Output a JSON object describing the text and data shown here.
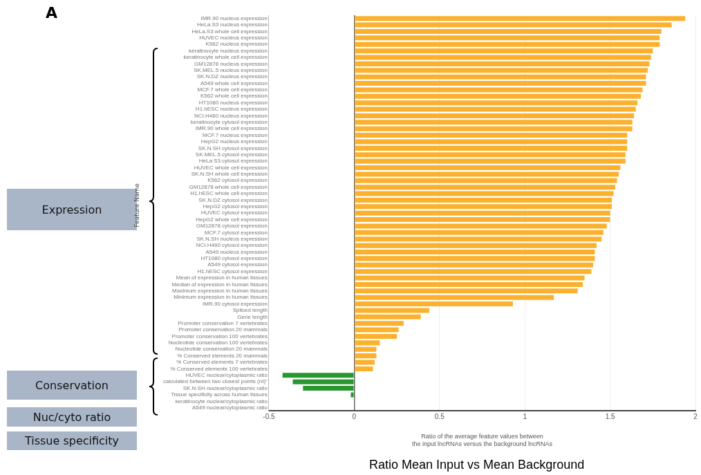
{
  "chart_data": {
    "type": "bar",
    "orientation": "horizontal",
    "xlabel": "Ratio of the average feature values between\nthe input lncRNAs versus the background lncRNAs",
    "ylabel": "Feature Name",
    "categories": [
      "IMR.90 nucleus expression",
      "HeLa.S3 nucleus expression",
      "HeLa.S3 whole cell expression",
      "HUVEC nucleus expression",
      "K562 nucleus expression",
      "keratinocyte nucleus expression",
      "keratinocyte whole cell expression",
      "GM12878 nucleus expression",
      "SK.MEL.5 nucleus expression",
      "SK.N.DZ nucleus expression",
      "A549 whole cell expression",
      "MCF.7 whole cell expression",
      "K562 whole cell expression",
      "HT1080 nucleus expression",
      "H1.hESC nucleus expression",
      "NCI.H460 nucleus expression",
      "keratinocyte cytosol expression",
      "IMR.90 whole cell expression",
      "MCF.7 nucleus expression",
      "HepG2 nucleus expression",
      "SK.N.SH cytosol expression",
      "SK.MEL.5 cytosol expression",
      "HeLa.S3 cytosol expression",
      "HUVEC whole cell expression",
      "SK.N.SH whole cell expression",
      "K562 cytosol expression",
      "GM12878 whole cell expression",
      "H1.hESC whole cell expression",
      "SK.N.DZ cytosol expression",
      "HepG2 cytosol expression",
      "HUVEC cytosol expression",
      "HepG2 whole cell expression",
      "GM12878 cytosol expression",
      "MCF.7 cytosol expression",
      "SK.N.SH nucleus expression",
      "NCI.H460 cytosol expression",
      "A549 nucleus expression",
      "HT1080 cytosol expression",
      "A549 cytosol expression",
      "H1.hESC cytosol expression",
      "Mean of expression in human tissues",
      "Median of expression in human tissues",
      "Maximum expression in human tissues",
      "Minimum expression in human tissues",
      "IMR.90 cytosol expression",
      "Spliced length",
      "Gene length",
      "Promoter conservation 7 vertebrates",
      "Promoter conservation 20 mammals",
      "Promoter conservation 100 vertebrates",
      "Nucleotide conservation 100 vertebrates",
      "Nucleotide conservation 20 mammals",
      "% Conserved elements 20 mammals",
      "% Conserved elements 7 vertebrates",
      "% Conserved elements 100 vertebrates",
      "HUVEC nuclear/cytoplasmic ratio",
      "calculated between two closest points (nt)\"",
      "SK.N.SH nuclear/cytoplasmic ratio",
      "Tissue specificity across human tissues",
      "keratinocyte nuclear/cytoplasmic ratio",
      "A549 nuclear/cytoplasmic ratio"
    ],
    "values": [
      1.94,
      1.86,
      1.8,
      1.79,
      1.79,
      1.75,
      1.74,
      1.73,
      1.72,
      1.71,
      1.71,
      1.69,
      1.68,
      1.66,
      1.65,
      1.64,
      1.63,
      1.63,
      1.6,
      1.6,
      1.6,
      1.59,
      1.59,
      1.56,
      1.55,
      1.54,
      1.53,
      1.52,
      1.51,
      1.51,
      1.5,
      1.5,
      1.48,
      1.46,
      1.45,
      1.42,
      1.41,
      1.41,
      1.4,
      1.39,
      1.35,
      1.34,
      1.31,
      1.17,
      0.93,
      0.44,
      0.39,
      0.29,
      0.26,
      0.25,
      0.15,
      0.13,
      0.13,
      0.12,
      0.11,
      -0.42,
      -0.36,
      -0.3,
      -0.02,
      null,
      null
    ],
    "colors": [
      "#fbb12e",
      "#fbb12e",
      "#fbb12e",
      "#fbb12e",
      "#fbb12e",
      "#fbb12e",
      "#fbb12e",
      "#fbb12e",
      "#fbb12e",
      "#fbb12e",
      "#fbb12e",
      "#fbb12e",
      "#fbb12e",
      "#fbb12e",
      "#fbb12e",
      "#fbb12e",
      "#fbb12e",
      "#fbb12e",
      "#fbb12e",
      "#fbb12e",
      "#fbb12e",
      "#fbb12e",
      "#fbb12e",
      "#fbb12e",
      "#fbb12e",
      "#fbb12e",
      "#fbb12e",
      "#fbb12e",
      "#fbb12e",
      "#fbb12e",
      "#fbb12e",
      "#fbb12e",
      "#fbb12e",
      "#fbb12e",
      "#fbb12e",
      "#fbb12e",
      "#fbb12e",
      "#fbb12e",
      "#fbb12e",
      "#fbb12e",
      "#fbb12e",
      "#fbb12e",
      "#fbb12e",
      "#fbb12e",
      "#fbb12e",
      "#fbb12e",
      "#fbb12e",
      "#fbb12e",
      "#fbb12e",
      "#fbb12e",
      "#fbb12e",
      "#fbb12e",
      "#fbb12e",
      "#fbb12e",
      "#fbb12e",
      "#2a9630",
      "#2a9630",
      "#2a9630",
      "#2a9630",
      "#2a9630",
      "#2a9630"
    ],
    "xlim": [
      -0.5,
      2
    ],
    "xticks": [
      -0.5,
      0,
      0.5,
      1,
      1.5,
      2
    ],
    "grid": "x",
    "legend": false,
    "annotations": [
      "A",
      "Expression",
      "Conservation",
      "Nuc/cyto ratio",
      "Tissue specificity",
      "Ratio Mean Input vs Mean Background"
    ]
  }
}
